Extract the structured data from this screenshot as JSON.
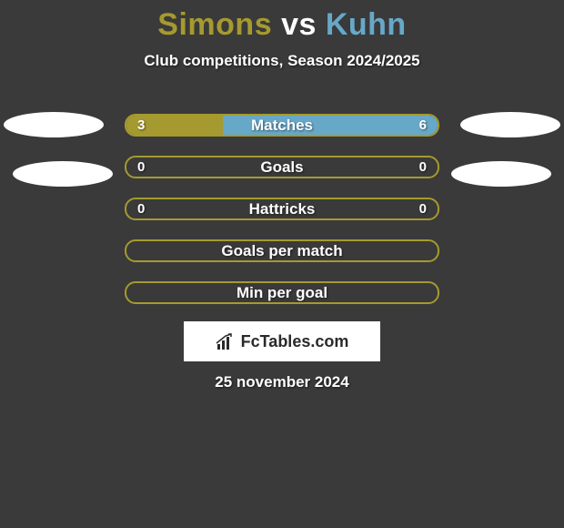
{
  "title": {
    "player1": "Simons",
    "vs": "vs",
    "player2": "Kuhn",
    "color1": "#a59a2f",
    "color_vs": "#ffffff",
    "color2": "#67a8c9"
  },
  "subtitle": "Club competitions, Season 2024/2025",
  "bars": {
    "border_color": "#a59a2f",
    "bg_color": "#3a3a3a",
    "left_fill_color": "#a59a2f",
    "right_fill_color": "#67a8c9",
    "rows": [
      {
        "label": "Matches",
        "left_val": "3",
        "right_val": "6",
        "left_pct": 31,
        "right_pct": 69
      },
      {
        "label": "Goals",
        "left_val": "0",
        "right_val": "0",
        "left_pct": 0,
        "right_pct": 0
      },
      {
        "label": "Hattricks",
        "left_val": "0",
        "right_val": "0",
        "left_pct": 0,
        "right_pct": 0
      },
      {
        "label": "Goals per match",
        "left_val": "",
        "right_val": "",
        "left_pct": 0,
        "right_pct": 0
      },
      {
        "label": "Min per goal",
        "left_val": "",
        "right_val": "",
        "left_pct": 0,
        "right_pct": 0
      }
    ]
  },
  "logo": {
    "text": "FcTables.com",
    "icon_color": "#2a2a2a"
  },
  "date": "25 november 2024",
  "background_color": "#3a3a3a",
  "avatar_color": "#ffffff"
}
